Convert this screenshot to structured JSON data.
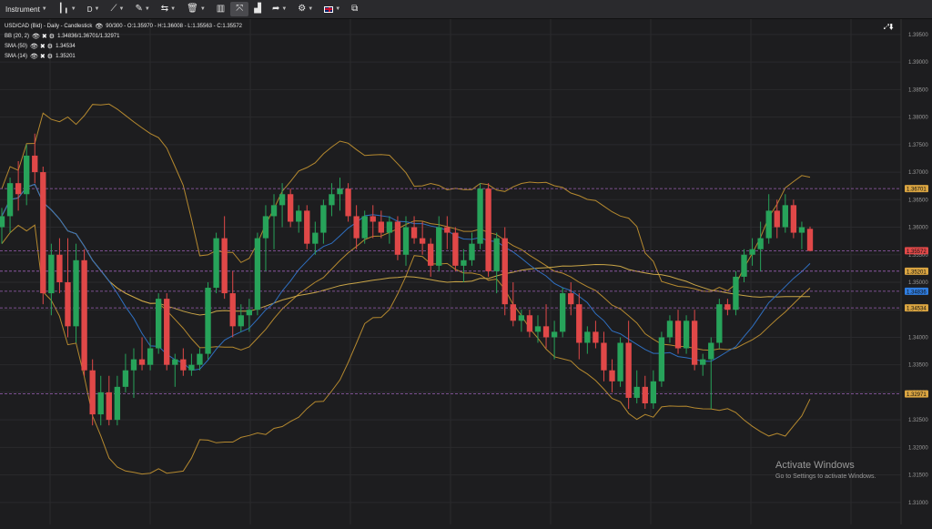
{
  "toolbar": {
    "instrument_label": "Instrument",
    "timeframe_label": "D",
    "icons": [
      "candlestick-icon",
      "drawing-tools-icon",
      "pencil-icon",
      "compare-icon",
      "trash-icon",
      "layout-icon",
      "fullscreen-icon",
      "bar-chart-icon",
      "share-icon",
      "settings-icon",
      "language-flag-icon",
      "popout-icon"
    ]
  },
  "legend": {
    "title": "USD/CAD (Bid) - Daily - Candlestick",
    "quote": "90/300 - O:1.35970 - H:1.36008 - L:1.35563 - C:1.35572",
    "indicators": [
      {
        "name": "BB (20, 2)",
        "values": "1.34836/1.36701/1.32971"
      },
      {
        "name": "SMA (50)",
        "values": "1.34534"
      },
      {
        "name": "SMA (14)",
        "values": "1.35201"
      }
    ]
  },
  "watermark": {
    "title": "Activate Windows",
    "subtitle": "Go to Settings to activate Windows."
  },
  "chart_data": {
    "type": "candlestick",
    "ylim": [
      1.306,
      1.3978
    ],
    "price_axis_labels": [
      "1.39500",
      "1.39000",
      "1.38500",
      "1.38000",
      "1.37500",
      "1.37000",
      "1.36500",
      "1.36000",
      "1.35500",
      "1.35000",
      "1.34500",
      "1.34000",
      "1.33500",
      "1.33000",
      "1.32500",
      "1.32000",
      "1.31500",
      "1.31000"
    ],
    "price_markers": [
      {
        "label": "1.36701",
        "value": 1.36701,
        "color": "#d9a441",
        "line": "#9a5fb3"
      },
      {
        "label": "1.35572",
        "value": 1.35572,
        "color": "#e04848",
        "line": "#9a5fb3"
      },
      {
        "label": "1.35201",
        "value": 1.35201,
        "color": "#d9a441",
        "line": "#9a5fb3"
      },
      {
        "label": "1.34836",
        "value": 1.34836,
        "color": "#2f7de0",
        "line": "#9a5fb3"
      },
      {
        "label": "1.34534",
        "value": 1.34534,
        "color": "#d9a441",
        "line": "#9a5fb3"
      },
      {
        "label": "1.32971",
        "value": 1.32971,
        "color": "#d9a441",
        "line": "#9a5fb3"
      }
    ],
    "colors": {
      "up": "#27a35a",
      "down": "#e04848",
      "bb": "#b5892f",
      "sma50": "#c9a547",
      "sma14": "#2f6fc0"
    },
    "candles": [
      [
        1.36,
        1.3635,
        1.357,
        1.362
      ],
      [
        1.362,
        1.369,
        1.359,
        1.368
      ],
      [
        1.368,
        1.372,
        1.363,
        1.366
      ],
      [
        1.366,
        1.375,
        1.364,
        1.373
      ],
      [
        1.373,
        1.377,
        1.368,
        1.37
      ],
      [
        1.37,
        1.371,
        1.346,
        1.348
      ],
      [
        1.348,
        1.357,
        1.344,
        1.355
      ],
      [
        1.355,
        1.358,
        1.348,
        1.35
      ],
      [
        1.35,
        1.358,
        1.34,
        1.342
      ],
      [
        1.342,
        1.357,
        1.339,
        1.354
      ],
      [
        1.354,
        1.356,
        1.333,
        1.334
      ],
      [
        1.334,
        1.336,
        1.324,
        1.326
      ],
      [
        1.326,
        1.333,
        1.324,
        1.33
      ],
      [
        1.33,
        1.333,
        1.324,
        1.325
      ],
      [
        1.325,
        1.333,
        1.324,
        1.331
      ],
      [
        1.331,
        1.337,
        1.33,
        1.334
      ],
      [
        1.334,
        1.338,
        1.329,
        1.336
      ],
      [
        1.336,
        1.34,
        1.334,
        1.335
      ],
      [
        1.335,
        1.34,
        1.334,
        1.338
      ],
      [
        1.338,
        1.348,
        1.337,
        1.347
      ],
      [
        1.347,
        1.348,
        1.334,
        1.335
      ],
      [
        1.335,
        1.337,
        1.331,
        1.336
      ],
      [
        1.336,
        1.338,
        1.333,
        1.334
      ],
      [
        1.334,
        1.337,
        1.333,
        1.335
      ],
      [
        1.335,
        1.338,
        1.334,
        1.337
      ],
      [
        1.337,
        1.35,
        1.336,
        1.349
      ],
      [
        1.349,
        1.359,
        1.348,
        1.358
      ],
      [
        1.358,
        1.362,
        1.347,
        1.348
      ],
      [
        1.348,
        1.352,
        1.34,
        1.342
      ],
      [
        1.342,
        1.346,
        1.341,
        1.344
      ],
      [
        1.344,
        1.347,
        1.341,
        1.345
      ],
      [
        1.345,
        1.359,
        1.344,
        1.358
      ],
      [
        1.358,
        1.364,
        1.352,
        1.362
      ],
      [
        1.362,
        1.366,
        1.356,
        1.364
      ],
      [
        1.364,
        1.368,
        1.36,
        1.366
      ],
      [
        1.366,
        1.367,
        1.36,
        1.361
      ],
      [
        1.361,
        1.364,
        1.359,
        1.363
      ],
      [
        1.363,
        1.364,
        1.356,
        1.357
      ],
      [
        1.357,
        1.361,
        1.355,
        1.359
      ],
      [
        1.359,
        1.365,
        1.357,
        1.364
      ],
      [
        1.364,
        1.368,
        1.362,
        1.366
      ],
      [
        1.366,
        1.369,
        1.363,
        1.367
      ],
      [
        1.367,
        1.368,
        1.361,
        1.362
      ],
      [
        1.362,
        1.364,
        1.356,
        1.358
      ],
      [
        1.358,
        1.363,
        1.357,
        1.362
      ],
      [
        1.362,
        1.364,
        1.358,
        1.361
      ],
      [
        1.361,
        1.363,
        1.358,
        1.359
      ],
      [
        1.359,
        1.362,
        1.357,
        1.361
      ],
      [
        1.361,
        1.362,
        1.354,
        1.355
      ],
      [
        1.355,
        1.362,
        1.353,
        1.36
      ],
      [
        1.36,
        1.362,
        1.357,
        1.358
      ],
      [
        1.358,
        1.361,
        1.355,
        1.357
      ],
      [
        1.357,
        1.358,
        1.351,
        1.353
      ],
      [
        1.353,
        1.362,
        1.352,
        1.36
      ],
      [
        1.36,
        1.362,
        1.356,
        1.359
      ],
      [
        1.359,
        1.36,
        1.352,
        1.353
      ],
      [
        1.353,
        1.356,
        1.35,
        1.354
      ],
      [
        1.354,
        1.359,
        1.353,
        1.357
      ],
      [
        1.357,
        1.368,
        1.356,
        1.367
      ],
      [
        1.367,
        1.368,
        1.351,
        1.352
      ],
      [
        1.352,
        1.359,
        1.348,
        1.358
      ],
      [
        1.358,
        1.36,
        1.344,
        1.346
      ],
      [
        1.346,
        1.35,
        1.342,
        1.343
      ],
      [
        1.343,
        1.345,
        1.341,
        1.344
      ],
      [
        1.344,
        1.345,
        1.34,
        1.341
      ],
      [
        1.341,
        1.344,
        1.339,
        1.342
      ],
      [
        1.342,
        1.346,
        1.338,
        1.34
      ],
      [
        1.34,
        1.343,
        1.336,
        1.341
      ],
      [
        1.341,
        1.349,
        1.34,
        1.348
      ],
      [
        1.348,
        1.35,
        1.344,
        1.346
      ],
      [
        1.346,
        1.348,
        1.336,
        1.339
      ],
      [
        1.339,
        1.342,
        1.337,
        1.341
      ],
      [
        1.341,
        1.343,
        1.338,
        1.339
      ],
      [
        1.339,
        1.341,
        1.332,
        1.334
      ],
      [
        1.334,
        1.336,
        1.33,
        1.332
      ],
      [
        1.332,
        1.34,
        1.331,
        1.339
      ],
      [
        1.339,
        1.343,
        1.327,
        1.329
      ],
      [
        1.329,
        1.334,
        1.328,
        1.331
      ],
      [
        1.331,
        1.333,
        1.327,
        1.328
      ],
      [
        1.328,
        1.334,
        1.327,
        1.332
      ],
      [
        1.332,
        1.341,
        1.331,
        1.34
      ],
      [
        1.34,
        1.344,
        1.339,
        1.343
      ],
      [
        1.343,
        1.345,
        1.337,
        1.338
      ],
      [
        1.338,
        1.344,
        1.337,
        1.343
      ],
      [
        1.343,
        1.345,
        1.334,
        1.335
      ],
      [
        1.335,
        1.337,
        1.333,
        1.336
      ],
      [
        1.336,
        1.34,
        1.327,
        1.339
      ],
      [
        1.339,
        1.347,
        1.338,
        1.346
      ],
      [
        1.346,
        1.347,
        1.344,
        1.345
      ],
      [
        1.345,
        1.352,
        1.344,
        1.351
      ],
      [
        1.351,
        1.356,
        1.35,
        1.355
      ],
      [
        1.355,
        1.358,
        1.353,
        1.356
      ],
      [
        1.356,
        1.361,
        1.352,
        1.358
      ],
      [
        1.358,
        1.366,
        1.357,
        1.363
      ],
      [
        1.363,
        1.365,
        1.358,
        1.36
      ],
      [
        1.36,
        1.366,
        1.359,
        1.364
      ],
      [
        1.364,
        1.365,
        1.358,
        1.359
      ],
      [
        1.359,
        1.361,
        1.356,
        1.36
      ],
      [
        1.3597,
        1.3601,
        1.3556,
        1.3557
      ]
    ]
  }
}
